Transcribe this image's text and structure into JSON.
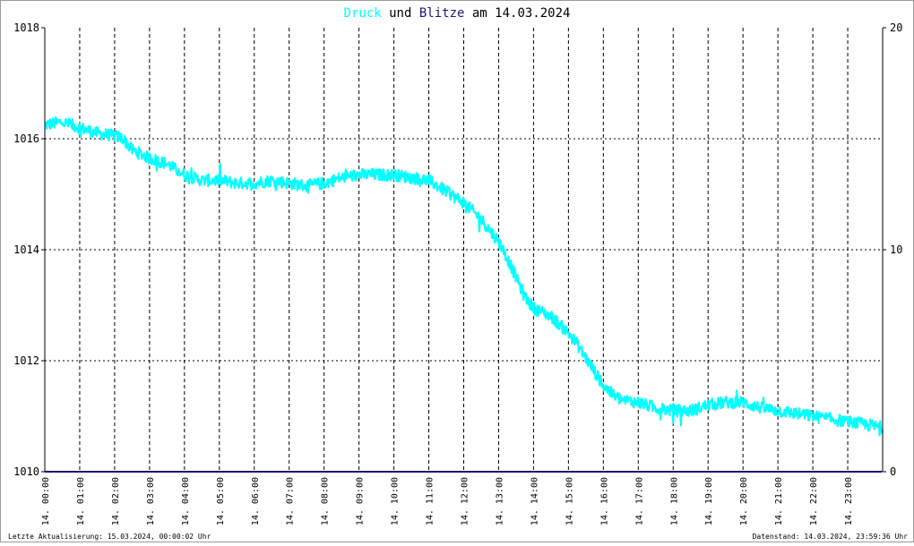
{
  "header": {
    "title_part1": "Druck",
    "title_part2": " und ",
    "title_part3": "Blitze",
    "title_part4": " am 14.03.2024"
  },
  "footer": {
    "left": "Letzte Aktualisierung: 15.03.2024, 00:00:02 Uhr",
    "right": "Datenstand: 14.03.2024, 23:59:36 Uhr"
  },
  "colors": {
    "pressure": "#00ffff",
    "lightning": "#191970",
    "grid": "#000000"
  },
  "chart_data": {
    "type": "line",
    "title": "Druck und Blitze am 14.03.2024",
    "grid": true,
    "x_range": [
      "14. 00:00",
      "14. 24:00"
    ],
    "x_tick_labels": [
      "14. 00:00",
      "14. 01:00",
      "14. 02:00",
      "14. 03:00",
      "14. 04:00",
      "14. 05:00",
      "14. 06:00",
      "14. 07:00",
      "14. 08:00",
      "14. 09:00",
      "14. 10:00",
      "14. 11:00",
      "14. 12:00",
      "14. 13:00",
      "14. 14:00",
      "14. 15:00",
      "14. 16:00",
      "14. 17:00",
      "14. 18:00",
      "14. 19:00",
      "14. 20:00",
      "14. 21:00",
      "14. 22:00",
      "14. 23:00"
    ],
    "y_left": {
      "range": [
        1010,
        1018
      ],
      "tick_labels": [
        "1010",
        "1012",
        "1014",
        "1016",
        "1018"
      ]
    },
    "y_right": {
      "range": [
        0,
        20
      ],
      "tick_labels": [
        "0",
        "10",
        "20"
      ]
    },
    "series": [
      {
        "name": "Druck",
        "axis": "left",
        "color": "#00ffff",
        "x": [
          "00:00",
          "00:30",
          "01:00",
          "01:30",
          "02:00",
          "02:15",
          "02:30",
          "03:00",
          "03:30",
          "04:00",
          "04:30",
          "05:00",
          "05:30",
          "06:00",
          "06:30",
          "07:00",
          "07:30",
          "08:00",
          "08:30",
          "09:00",
          "09:30",
          "10:00",
          "10:30",
          "11:00",
          "11:30",
          "12:00",
          "12:15",
          "12:30",
          "12:45",
          "13:00",
          "13:15",
          "13:30",
          "13:45",
          "14:00",
          "14:30",
          "15:00",
          "15:15",
          "15:30",
          "15:45",
          "16:00",
          "16:15",
          "16:30",
          "17:00",
          "17:30",
          "18:00",
          "18:30",
          "19:00",
          "19:30",
          "20:00",
          "20:30",
          "21:00",
          "21:30",
          "22:00",
          "22:30",
          "23:00",
          "23:30",
          "23:59"
        ],
        "y": [
          1016.25,
          1016.3,
          1016.2,
          1016.1,
          1016.05,
          1016.0,
          1015.8,
          1015.65,
          1015.55,
          1015.35,
          1015.25,
          1015.25,
          1015.2,
          1015.2,
          1015.25,
          1015.2,
          1015.15,
          1015.2,
          1015.3,
          1015.35,
          1015.35,
          1015.35,
          1015.3,
          1015.25,
          1015.05,
          1014.85,
          1014.7,
          1014.55,
          1014.35,
          1014.15,
          1013.85,
          1013.5,
          1013.15,
          1012.95,
          1012.8,
          1012.5,
          1012.3,
          1012.05,
          1011.8,
          1011.55,
          1011.4,
          1011.3,
          1011.25,
          1011.15,
          1011.1,
          1011.1,
          1011.2,
          1011.25,
          1011.25,
          1011.15,
          1011.1,
          1011.05,
          1011.0,
          1010.95,
          1010.9,
          1010.85,
          1010.8
        ]
      },
      {
        "name": "Blitze",
        "axis": "right",
        "color": "#191970",
        "x": [
          "00:00",
          "23:59"
        ],
        "y": [
          0,
          0
        ]
      }
    ]
  }
}
